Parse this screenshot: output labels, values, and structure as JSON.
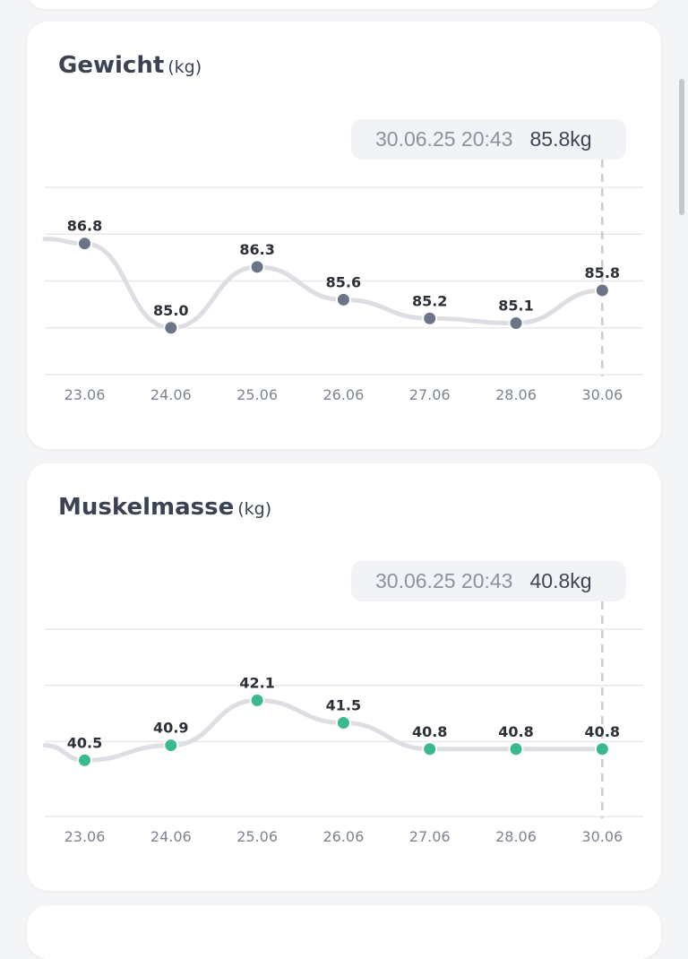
{
  "chart_data": [
    {
      "type": "line",
      "title": "Gewicht",
      "unit": "(kg)",
      "categories": [
        "23.06",
        "24.06",
        "25.06",
        "26.06",
        "27.06",
        "28.06",
        "30.06"
      ],
      "values": [
        86.8,
        85.0,
        86.3,
        85.6,
        85.2,
        85.1,
        85.8
      ],
      "value_labels": [
        "86.8",
        "85.0",
        "86.3",
        "85.6",
        "85.2",
        "85.1",
        "85.8"
      ],
      "tooltip": {
        "date": "30.06.25 20:43",
        "value": "85.8kg"
      },
      "point_color": "#6b7588",
      "line_color": "#dcdee3",
      "leading_value": 86.9,
      "ylim": [
        84.0,
        88.0
      ],
      "gridlines": [
        85.0,
        86.0,
        87.0,
        88.0
      ],
      "grid": true
    },
    {
      "type": "line",
      "title": "Muskelmasse",
      "unit": "(kg)",
      "categories": [
        "23.06",
        "24.06",
        "25.06",
        "26.06",
        "27.06",
        "28.06",
        "30.06"
      ],
      "values": [
        40.5,
        40.9,
        42.1,
        41.5,
        40.8,
        40.8,
        40.8
      ],
      "value_labels": [
        "40.5",
        "40.9",
        "42.1",
        "41.5",
        "40.8",
        "40.8",
        "40.8"
      ],
      "tooltip": {
        "date": "30.06.25 20:43",
        "value": "40.8kg"
      },
      "point_color": "#3ab98e",
      "line_color": "#dcdee3",
      "leading_value": 40.9,
      "ylim": [
        39.0,
        44.0
      ],
      "gridlines": [
        41.0,
        42.5,
        44.0
      ],
      "grid": true
    }
  ]
}
